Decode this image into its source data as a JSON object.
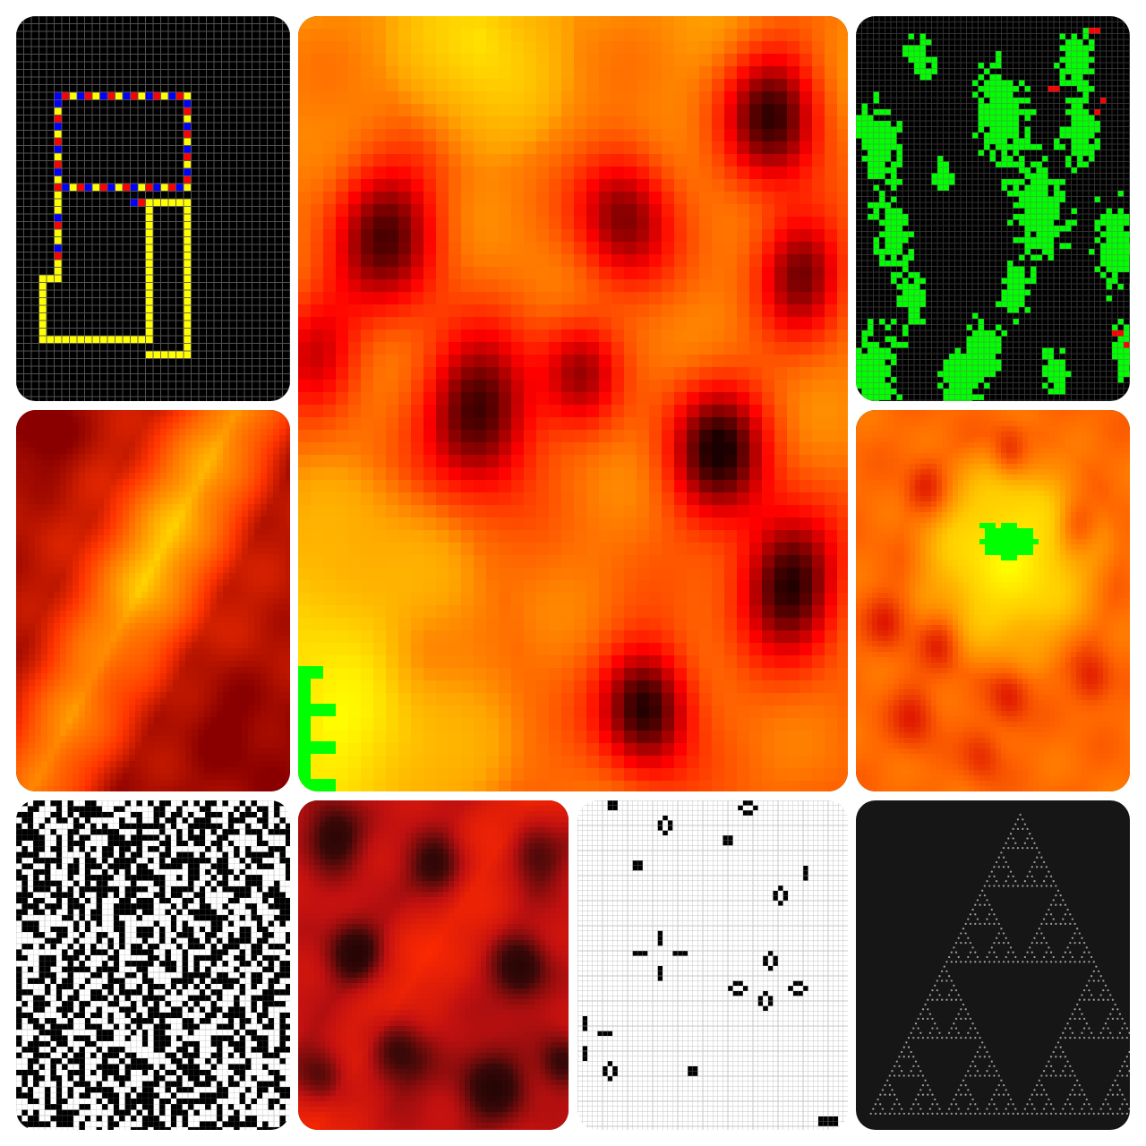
{
  "tiles": [
    {
      "kind": "wireworld",
      "palette": {
        "background": "#000000",
        "conductor": "#ffff00",
        "electron_head": "#0000ff",
        "electron_tail": "#ff0000",
        "grid": "#5a5a5a"
      }
    },
    {
      "kind": "heat-noise",
      "palette": [
        "#1a0000",
        "#ff0000",
        "#ffa500",
        "#ffff00"
      ],
      "highlight": "#00ff00"
    },
    {
      "kind": "green-blobs",
      "palette": {
        "background": "#1c1212",
        "fill": "#00ff00",
        "accent": "#ff0000",
        "grid": "#6a6a6a"
      }
    },
    {
      "kind": "heat-noise",
      "palette": [
        "#8a0000",
        "#ff3300",
        "#ff8c00",
        "#ffff00"
      ]
    },
    {
      "kind": "heat-noise",
      "palette": [
        "#d60000",
        "#ff6600",
        "#ffcc00",
        "#ffff00"
      ],
      "highlight": "#00ff00"
    },
    {
      "kind": "random-binary",
      "palette": {
        "on": "#000000",
        "off": "#ffffff"
      }
    },
    {
      "kind": "heat-noise",
      "palette": [
        "#140202",
        "#3a0808",
        "#c01010",
        "#ff2a00"
      ]
    },
    {
      "kind": "life-still",
      "palette": {
        "on": "#000000",
        "off": "#ffffff",
        "grid": "#999999"
      }
    },
    {
      "kind": "sierpinski",
      "palette": {
        "background": "#161616",
        "dot": "#9a9a9a"
      }
    }
  ]
}
